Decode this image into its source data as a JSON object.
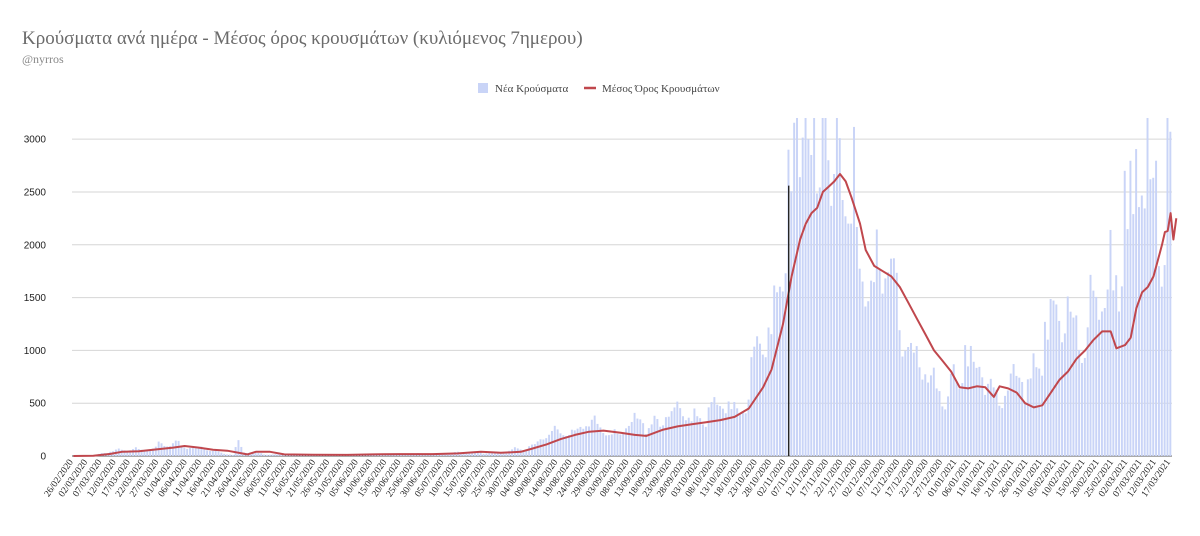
{
  "chart_data": {
    "type": "bar",
    "title": "Κρούσματα ανά ημέρα - Μέσος όρος κρουσμάτων (κυλιόμενος 7ημερου)",
    "subtitle": "@nyrros",
    "legend_position": "top",
    "grid": true,
    "ylim": [
      0,
      3200
    ],
    "y_ticks": [
      0,
      500,
      1000,
      1500,
      2000,
      2500,
      3000
    ],
    "x_start": "2020-02-26",
    "x_end": "2021-03-17",
    "x_tick_labels": [
      "26/02/2020",
      "02/03/2020",
      "07/03/2020",
      "12/03/2020",
      "17/03/2020",
      "22/03/2020",
      "27/03/2020",
      "01/04/2020",
      "06/04/2020",
      "11/04/2020",
      "16/04/2020",
      "21/04/2020",
      "26/04/2020",
      "01/05/2020",
      "06/05/2020",
      "11/05/2020",
      "16/05/2020",
      "21/05/2020",
      "26/05/2020",
      "31/05/2020",
      "05/06/2020",
      "10/06/2020",
      "15/06/2020",
      "20/06/2020",
      "25/06/2020",
      "30/06/2020",
      "05/07/2020",
      "10/07/2020",
      "15/07/2020",
      "20/07/2020",
      "25/07/2020",
      "30/07/2020",
      "04/08/2020",
      "09/08/2020",
      "14/08/2020",
      "19/08/2020",
      "24/08/2020",
      "29/08/2020",
      "03/09/2020",
      "08/09/2020",
      "13/09/2020",
      "18/09/2020",
      "23/09/2020",
      "28/09/2020",
      "03/10/2020",
      "08/10/2020",
      "13/10/2020",
      "18/10/2020",
      "23/10/2020",
      "28/10/2020",
      "02/11/2020",
      "07/11/2020",
      "12/11/2020",
      "17/11/2020",
      "22/11/2020",
      "27/11/2020",
      "02/12/2020",
      "07/12/2020",
      "12/12/2020",
      "17/12/2020",
      "22/12/2020",
      "27/12/2020",
      "01/01/2021",
      "06/01/2021",
      "11/01/2021",
      "16/01/2021",
      "21/01/2021",
      "26/01/2021",
      "31/01/2021",
      "05/02/2021",
      "10/02/2021",
      "15/02/2021",
      "20/02/2021",
      "25/02/2021",
      "02/03/2021",
      "07/03/2021",
      "12/03/2021",
      "17/03/2021"
    ],
    "marker_line_date": "2020-11-03",
    "series": [
      {
        "name": "Νέα Κρούσματα",
        "type": "bar",
        "color": "#c9d4f7",
        "keypoints": [
          [
            "2020-02-26",
            0
          ],
          [
            "2020-03-04",
            5
          ],
          [
            "2020-03-10",
            40
          ],
          [
            "2020-03-17",
            45
          ],
          [
            "2020-03-24",
            75
          ],
          [
            "2020-04-01",
            90
          ],
          [
            "2020-04-08",
            75
          ],
          [
            "2020-04-15",
            40
          ],
          [
            "2020-04-22",
            10
          ],
          [
            "2020-04-24",
            150
          ],
          [
            "2020-04-26",
            30
          ],
          [
            "2020-05-04",
            15
          ],
          [
            "2020-05-20",
            10
          ],
          [
            "2020-06-05",
            12
          ],
          [
            "2020-06-20",
            15
          ],
          [
            "2020-07-05",
            20
          ],
          [
            "2020-07-15",
            30
          ],
          [
            "2020-07-25",
            25
          ],
          [
            "2020-08-01",
            60
          ],
          [
            "2020-08-08",
            130
          ],
          [
            "2020-08-15",
            200
          ],
          [
            "2020-08-22",
            240
          ],
          [
            "2020-08-29",
            230
          ],
          [
            "2020-09-05",
            200
          ],
          [
            "2020-09-12",
            270
          ],
          [
            "2020-09-19",
            300
          ],
          [
            "2020-09-26",
            330
          ],
          [
            "2020-10-03",
            350
          ],
          [
            "2020-10-10",
            370
          ],
          [
            "2020-10-17",
            420
          ],
          [
            "2020-10-24",
            800
          ],
          [
            "2020-10-28",
            1100
          ],
          [
            "2020-11-01",
            1800
          ],
          [
            "2020-11-05",
            2300
          ],
          [
            "2020-11-10",
            2700
          ],
          [
            "2020-11-14",
            2550
          ],
          [
            "2020-11-18",
            2500
          ],
          [
            "2020-11-25",
            2100
          ],
          [
            "2020-12-01",
            1650
          ],
          [
            "2020-12-05",
            1500
          ],
          [
            "2020-12-10",
            1300
          ],
          [
            "2020-12-15",
            1000
          ],
          [
            "2020-12-20",
            700
          ],
          [
            "2020-12-25",
            450
          ],
          [
            "2020-12-30",
            650
          ],
          [
            "2021-01-05",
            650
          ],
          [
            "2021-01-12",
            620
          ],
          [
            "2021-01-19",
            470
          ],
          [
            "2021-01-26",
            650
          ],
          [
            "2021-02-02",
            900
          ],
          [
            "2021-02-09",
            1150
          ],
          [
            "2021-02-16",
            1100
          ],
          [
            "2021-02-20",
            1100
          ],
          [
            "2021-02-25",
            1500
          ],
          [
            "2021-03-02",
            1900
          ],
          [
            "2021-03-07",
            2100
          ],
          [
            "2021-03-12",
            2300
          ],
          [
            "2021-03-17",
            2200
          ]
        ],
        "peaks": [
          [
            "2020-04-24",
            150
          ],
          [
            "2020-10-30",
            1550
          ],
          [
            "2020-11-03",
            2900
          ],
          [
            "2020-11-07",
            2640
          ],
          [
            "2020-11-09",
            3200
          ],
          [
            "2020-11-10",
            3000
          ],
          [
            "2020-11-11",
            2850
          ],
          [
            "2020-11-15",
            3200
          ],
          [
            "2020-11-16",
            3200
          ],
          [
            "2020-11-17",
            2800
          ],
          [
            "2020-11-24",
            2200
          ],
          [
            "2020-11-25",
            2200
          ],
          [
            "2020-12-02",
            1660
          ],
          [
            "2021-01-04",
            1050
          ],
          [
            "2021-02-01",
            1270
          ],
          [
            "2021-02-09",
            1510
          ],
          [
            "2021-02-24",
            2140
          ],
          [
            "2021-03-01",
            2700
          ],
          [
            "2021-03-04",
            2290
          ],
          [
            "2021-03-09",
            3200
          ],
          [
            "2021-03-10",
            2620
          ],
          [
            "2021-03-16",
            3200
          ],
          [
            "2021-03-17",
            3070
          ]
        ]
      },
      {
        "name": "Μέσος Όρος Κρουσμάτων",
        "type": "line",
        "color": "#c0474d",
        "points": [
          [
            "2020-02-26",
            0
          ],
          [
            "2020-03-04",
            2
          ],
          [
            "2020-03-10",
            20
          ],
          [
            "2020-03-14",
            40
          ],
          [
            "2020-03-20",
            45
          ],
          [
            "2020-03-27",
            65
          ],
          [
            "2020-04-01",
            80
          ],
          [
            "2020-04-05",
            95
          ],
          [
            "2020-04-10",
            80
          ],
          [
            "2020-04-15",
            60
          ],
          [
            "2020-04-20",
            50
          ],
          [
            "2020-04-27",
            15
          ],
          [
            "2020-04-30",
            40
          ],
          [
            "2020-05-05",
            40
          ],
          [
            "2020-05-10",
            15
          ],
          [
            "2020-05-20",
            12
          ],
          [
            "2020-06-01",
            10
          ],
          [
            "2020-06-10",
            15
          ],
          [
            "2020-06-20",
            18
          ],
          [
            "2020-07-01",
            18
          ],
          [
            "2020-07-10",
            25
          ],
          [
            "2020-07-18",
            40
          ],
          [
            "2020-07-25",
            30
          ],
          [
            "2020-08-01",
            40
          ],
          [
            "2020-08-05",
            70
          ],
          [
            "2020-08-10",
            110
          ],
          [
            "2020-08-15",
            160
          ],
          [
            "2020-08-20",
            200
          ],
          [
            "2020-08-25",
            230
          ],
          [
            "2020-08-30",
            240
          ],
          [
            "2020-09-05",
            220
          ],
          [
            "2020-09-10",
            200
          ],
          [
            "2020-09-14",
            190
          ],
          [
            "2020-09-20",
            250
          ],
          [
            "2020-09-25",
            280
          ],
          [
            "2020-09-30",
            300
          ],
          [
            "2020-10-05",
            320
          ],
          [
            "2020-10-10",
            340
          ],
          [
            "2020-10-15",
            370
          ],
          [
            "2020-10-20",
            450
          ],
          [
            "2020-10-25",
            650
          ],
          [
            "2020-10-28",
            820
          ],
          [
            "2020-11-01",
            1250
          ],
          [
            "2020-11-04",
            1700
          ],
          [
            "2020-11-07",
            2050
          ],
          [
            "2020-11-09",
            2200
          ],
          [
            "2020-11-11",
            2300
          ],
          [
            "2020-11-13",
            2350
          ],
          [
            "2020-11-15",
            2500
          ],
          [
            "2020-11-17",
            2550
          ],
          [
            "2020-11-19",
            2600
          ],
          [
            "2020-11-21",
            2670
          ],
          [
            "2020-11-23",
            2600
          ],
          [
            "2020-11-25",
            2450
          ],
          [
            "2020-11-28",
            2200
          ],
          [
            "2020-11-30",
            1950
          ],
          [
            "2020-12-03",
            1800
          ],
          [
            "2020-12-06",
            1750
          ],
          [
            "2020-12-09",
            1700
          ],
          [
            "2020-12-12",
            1600
          ],
          [
            "2020-12-15",
            1450
          ],
          [
            "2020-12-18",
            1300
          ],
          [
            "2020-12-21",
            1150
          ],
          [
            "2020-12-24",
            1000
          ],
          [
            "2020-12-27",
            900
          ],
          [
            "2020-12-30",
            800
          ],
          [
            "2021-01-02",
            650
          ],
          [
            "2021-01-05",
            640
          ],
          [
            "2021-01-08",
            660
          ],
          [
            "2021-01-11",
            650
          ],
          [
            "2021-01-14",
            560
          ],
          [
            "2021-01-16",
            660
          ],
          [
            "2021-01-19",
            640
          ],
          [
            "2021-01-22",
            600
          ],
          [
            "2021-01-25",
            500
          ],
          [
            "2021-01-28",
            460
          ],
          [
            "2021-01-31",
            480
          ],
          [
            "2021-02-03",
            600
          ],
          [
            "2021-02-06",
            720
          ],
          [
            "2021-02-09",
            800
          ],
          [
            "2021-02-12",
            920
          ],
          [
            "2021-02-15",
            1000
          ],
          [
            "2021-02-18",
            1100
          ],
          [
            "2021-02-21",
            1180
          ],
          [
            "2021-02-24",
            1180
          ],
          [
            "2021-02-26",
            1020
          ],
          [
            "2021-03-01",
            1050
          ],
          [
            "2021-03-03",
            1120
          ],
          [
            "2021-03-05",
            1400
          ],
          [
            "2021-03-07",
            1550
          ],
          [
            "2021-03-09",
            1600
          ],
          [
            "2021-03-11",
            1700
          ],
          [
            "2021-03-13",
            1900
          ],
          [
            "2021-03-14",
            2000
          ],
          [
            "2021-03-15",
            2120
          ],
          [
            "2021-03-16",
            2130
          ],
          [
            "2021-03-17",
            2300
          ],
          [
            "2021-03-18",
            2050
          ],
          [
            "2021-03-19",
            2250
          ]
        ]
      }
    ]
  }
}
